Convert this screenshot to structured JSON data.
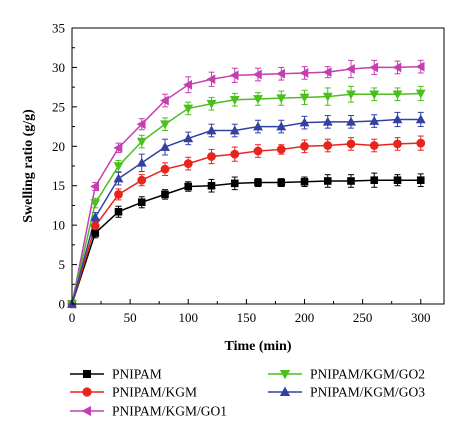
{
  "chart_data": {
    "type": "line",
    "title": "",
    "xlabel": "Time (min)",
    "ylabel": "Swelling ratio (g/g)",
    "xlim": [
      0,
      320
    ],
    "ylim": [
      0,
      35
    ],
    "xticks": [
      "0",
      "50",
      "100",
      "150",
      "200",
      "250",
      "300"
    ],
    "yticks": [
      "0",
      "5",
      "10",
      "15",
      "20",
      "25",
      "30",
      "35"
    ],
    "x": [
      0,
      20,
      40,
      60,
      80,
      100,
      120,
      140,
      160,
      180,
      200,
      220,
      240,
      260,
      280,
      300
    ],
    "legend_placement": "bottom",
    "series": [
      {
        "name": "PNIPAM",
        "color": "#000000",
        "marker": "square",
        "values": [
          0,
          9.0,
          11.7,
          12.9,
          13.9,
          14.9,
          15.0,
          15.3,
          15.4,
          15.4,
          15.5,
          15.6,
          15.6,
          15.7,
          15.7,
          15.7
        ],
        "errors": [
          0,
          0.6,
          0.7,
          0.7,
          0.6,
          0.6,
          0.8,
          0.8,
          0.5,
          0.5,
          0.6,
          0.8,
          0.8,
          0.9,
          0.7,
          0.8
        ]
      },
      {
        "name": "PNIPAM/KGM",
        "color": "#e8251c",
        "marker": "circle",
        "values": [
          0,
          9.9,
          13.9,
          15.7,
          17.1,
          17.8,
          18.7,
          19.0,
          19.4,
          19.6,
          20.0,
          20.1,
          20.3,
          20.1,
          20.3,
          20.4
        ],
        "errors": [
          0,
          0.6,
          0.7,
          0.7,
          0.8,
          0.8,
          0.9,
          0.9,
          0.8,
          0.6,
          0.8,
          0.8,
          0.8,
          0.8,
          0.8,
          0.9
        ]
      },
      {
        "name": "PNIPAM/KGM/GO1",
        "color": "#c43fb0",
        "marker": "triangle-left",
        "values": [
          0,
          14.9,
          19.8,
          22.8,
          25.8,
          27.8,
          28.5,
          29.0,
          29.1,
          29.2,
          29.3,
          29.4,
          29.8,
          30.0,
          30.0,
          30.1
        ],
        "errors": [
          0,
          0.5,
          0.6,
          0.7,
          0.8,
          1.0,
          0.9,
          0.9,
          0.8,
          0.8,
          0.8,
          0.7,
          1.1,
          0.9,
          0.8,
          0.8
        ]
      },
      {
        "name": "PNIPAM/KGM/GO2",
        "color": "#4cbf1e",
        "marker": "triangle-down",
        "values": [
          0,
          12.8,
          17.5,
          20.6,
          22.8,
          24.8,
          25.4,
          25.9,
          26.0,
          26.1,
          26.2,
          26.3,
          26.6,
          26.6,
          26.6,
          26.7
        ],
        "errors": [
          0,
          0.6,
          0.7,
          0.8,
          0.8,
          0.8,
          0.8,
          0.8,
          0.8,
          0.9,
          0.9,
          1.1,
          1.0,
          0.8,
          0.8,
          0.9
        ]
      },
      {
        "name": "PNIPAM/KGM/GO3",
        "color": "#3341a3",
        "marker": "triangle-up",
        "values": [
          0,
          11.0,
          15.9,
          17.9,
          19.9,
          21.0,
          22.0,
          22.0,
          22.5,
          22.5,
          23.0,
          23.1,
          23.1,
          23.2,
          23.4,
          23.4
        ],
        "errors": [
          0,
          0.6,
          0.8,
          1.1,
          1.0,
          0.8,
          0.8,
          0.8,
          0.8,
          0.8,
          0.8,
          0.8,
          0.8,
          0.8,
          0.9,
          0.9
        ]
      }
    ]
  }
}
